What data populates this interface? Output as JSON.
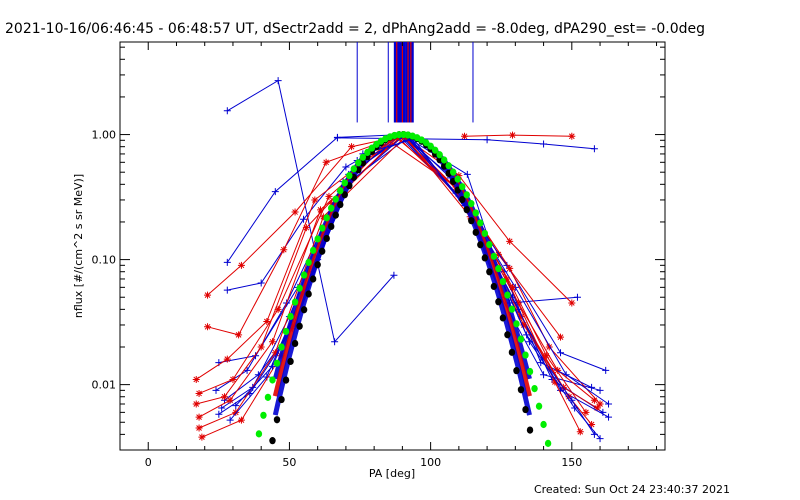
{
  "header": {
    "title": "2021-10-16/06:46:45 - 06:48:57 UT, dSectr2add = 2, dPhAng2add = -8.0deg, dPA290_est= -0.0deg"
  },
  "footer": {
    "created": "Created: Sun Oct 24 23:40:37 2021"
  },
  "colors": {
    "red_series": "#e00000",
    "blue_series": "#0000d0",
    "gaussian_fit": "#00ee00",
    "narrow_fit": "#000000",
    "axes": "#000000"
  },
  "chart_data": {
    "type": "line",
    "title": "",
    "xlabel": "PA [deg]",
    "ylabel": "nflux [#/(cm^2 s sr MeV)]",
    "xlim": [
      -10,
      183
    ],
    "ylim": [
      0.003,
      5.5
    ],
    "y_scale": "log",
    "x_ticks": [
      0,
      50,
      100,
      150
    ],
    "x_tick_labels": [
      "0",
      "50",
      "100",
      "150"
    ],
    "y_ticks": [
      0.01,
      0.1,
      1.0
    ],
    "y_tick_labels": [
      "0.01",
      "0.10",
      "1.00"
    ],
    "grid": false,
    "legend": "none",
    "vertical_markers": {
      "color": "blue",
      "x": [
        74,
        85,
        87.5,
        88.5,
        89.5,
        90.5,
        91.5,
        92.5,
        93.5,
        115
      ],
      "red_x": [
        88,
        90,
        92,
        93
      ]
    },
    "gaussian_fit": {
      "color": "green",
      "center": 90,
      "sigma": 15.3,
      "peak": 1.0
    },
    "narrow_fit": {
      "color": "black",
      "center": 90,
      "sigma": 13.7,
      "peak": 1.0
    },
    "series": [
      {
        "color": "blue",
        "marker": "plus",
        "x": [
          28,
          46,
          66,
          87
        ],
        "y": [
          1.55,
          2.7,
          0.022,
          0.075
        ]
      },
      {
        "color": "red",
        "marker": "star",
        "x": [
          112,
          129,
          150
        ],
        "y": [
          0.97,
          0.99,
          0.97
        ]
      },
      {
        "color": "blue",
        "marker": "plus",
        "x": [
          67,
          120,
          140,
          158
        ],
        "y": [
          0.94,
          0.91,
          0.84,
          0.77
        ]
      },
      {
        "color": "blue",
        "marker": "plus",
        "x": [
          28,
          45,
          67,
          90,
          113,
          128,
          152
        ],
        "y": [
          0.095,
          0.35,
          0.95,
          1.0,
          0.48,
          0.045,
          0.05
        ]
      },
      {
        "color": "red",
        "marker": "star",
        "x": [
          21,
          33,
          52,
          72,
          90,
          110,
          128,
          150
        ],
        "y": [
          0.052,
          0.09,
          0.24,
          0.8,
          0.98,
          0.47,
          0.14,
          0.045
        ]
      },
      {
        "color": "blue",
        "marker": "plus",
        "x": [
          28,
          40,
          55,
          70,
          90,
          110,
          125,
          140,
          160
        ],
        "y": [
          0.057,
          0.065,
          0.21,
          0.55,
          0.99,
          0.41,
          0.05,
          0.012,
          0.009
        ]
      },
      {
        "color": "red",
        "marker": "star",
        "x": [
          21,
          32,
          48,
          63,
          90,
          112,
          124,
          146
        ],
        "y": [
          0.029,
          0.025,
          0.12,
          0.6,
          1.0,
          0.32,
          0.11,
          0.024
        ]
      },
      {
        "color": "blue",
        "marker": "plus",
        "x": [
          25,
          38,
          53,
          71,
          91,
          109,
          127,
          146,
          162
        ],
        "y": [
          0.015,
          0.017,
          0.06,
          0.48,
          0.98,
          0.34,
          0.09,
          0.018,
          0.013
        ]
      },
      {
        "color": "red",
        "marker": "star",
        "x": [
          17,
          28,
          42,
          59,
          89,
          110,
          128,
          142,
          160
        ],
        "y": [
          0.011,
          0.016,
          0.032,
          0.3,
          1.0,
          0.35,
          0.085,
          0.02,
          0.007
        ]
      },
      {
        "color": "blue",
        "marker": "plus",
        "x": [
          24,
          35,
          49,
          68,
          90,
          112,
          130,
          148,
          163
        ],
        "y": [
          0.009,
          0.013,
          0.045,
          0.35,
          0.96,
          0.28,
          0.06,
          0.012,
          0.007
        ]
      },
      {
        "color": "red",
        "marker": "star",
        "x": [
          18,
          30,
          46,
          64,
          88,
          111,
          131,
          145,
          158
        ],
        "y": [
          0.0085,
          0.011,
          0.04,
          0.32,
          0.97,
          0.31,
          0.045,
          0.013,
          0.0075
        ]
      },
      {
        "color": "blue",
        "marker": "plus",
        "x": [
          27,
          39,
          52,
          72,
          91,
          107,
          126,
          139,
          157
        ],
        "y": [
          0.0075,
          0.012,
          0.03,
          0.5,
          0.99,
          0.45,
          0.08,
          0.015,
          0.0095
        ]
      },
      {
        "color": "red",
        "marker": "star",
        "x": [
          17,
          27,
          40,
          56,
          85,
          109,
          129,
          141,
          155
        ],
        "y": [
          0.007,
          0.008,
          0.02,
          0.18,
          0.9,
          0.38,
          0.06,
          0.017,
          0.006
        ]
      },
      {
        "color": "blue",
        "marker": "plus",
        "x": [
          26,
          37,
          50,
          69,
          89,
          111,
          129,
          143,
          161
        ],
        "y": [
          0.0065,
          0.0095,
          0.035,
          0.42,
          0.97,
          0.3,
          0.05,
          0.011,
          0.006
        ]
      },
      {
        "color": "red",
        "marker": "star",
        "x": [
          18,
          29,
          44,
          61,
          90,
          113,
          132,
          147,
          159
        ],
        "y": [
          0.0055,
          0.0075,
          0.022,
          0.25,
          0.99,
          0.26,
          0.035,
          0.0095,
          0.0065
        ]
      },
      {
        "color": "blue",
        "marker": "plus",
        "x": [
          25,
          36,
          51,
          70,
          92,
          112,
          131,
          146,
          163
        ],
        "y": [
          0.0058,
          0.0085,
          0.028,
          0.4,
          0.95,
          0.27,
          0.04,
          0.009,
          0.0055
        ]
      },
      {
        "color": "red",
        "marker": "star",
        "x": [
          18,
          31,
          45,
          62,
          91,
          114,
          133,
          149,
          157
        ],
        "y": [
          0.0045,
          0.006,
          0.018,
          0.22,
          0.96,
          0.22,
          0.03,
          0.008,
          0.0048
        ]
      },
      {
        "color": "blue",
        "marker": "plus",
        "x": [
          29,
          42,
          58,
          74,
          93,
          115,
          134,
          150,
          158
        ],
        "y": [
          0.0052,
          0.0115,
          0.08,
          0.62,
          0.93,
          0.23,
          0.025,
          0.0075,
          0.004
        ]
      },
      {
        "color": "red",
        "marker": "star",
        "x": [
          19,
          33,
          47,
          65,
          88,
          110,
          127,
          144,
          153
        ],
        "y": [
          0.0038,
          0.0052,
          0.017,
          0.28,
          0.94,
          0.36,
          0.07,
          0.0105,
          0.0042
        ]
      },
      {
        "color": "blue",
        "marker": "plus",
        "x": [
          31,
          44,
          60,
          76,
          94,
          116,
          135,
          151,
          160
        ],
        "y": [
          0.0068,
          0.014,
          0.1,
          0.7,
          0.92,
          0.2,
          0.022,
          0.0065,
          0.0037
        ]
      }
    ]
  }
}
